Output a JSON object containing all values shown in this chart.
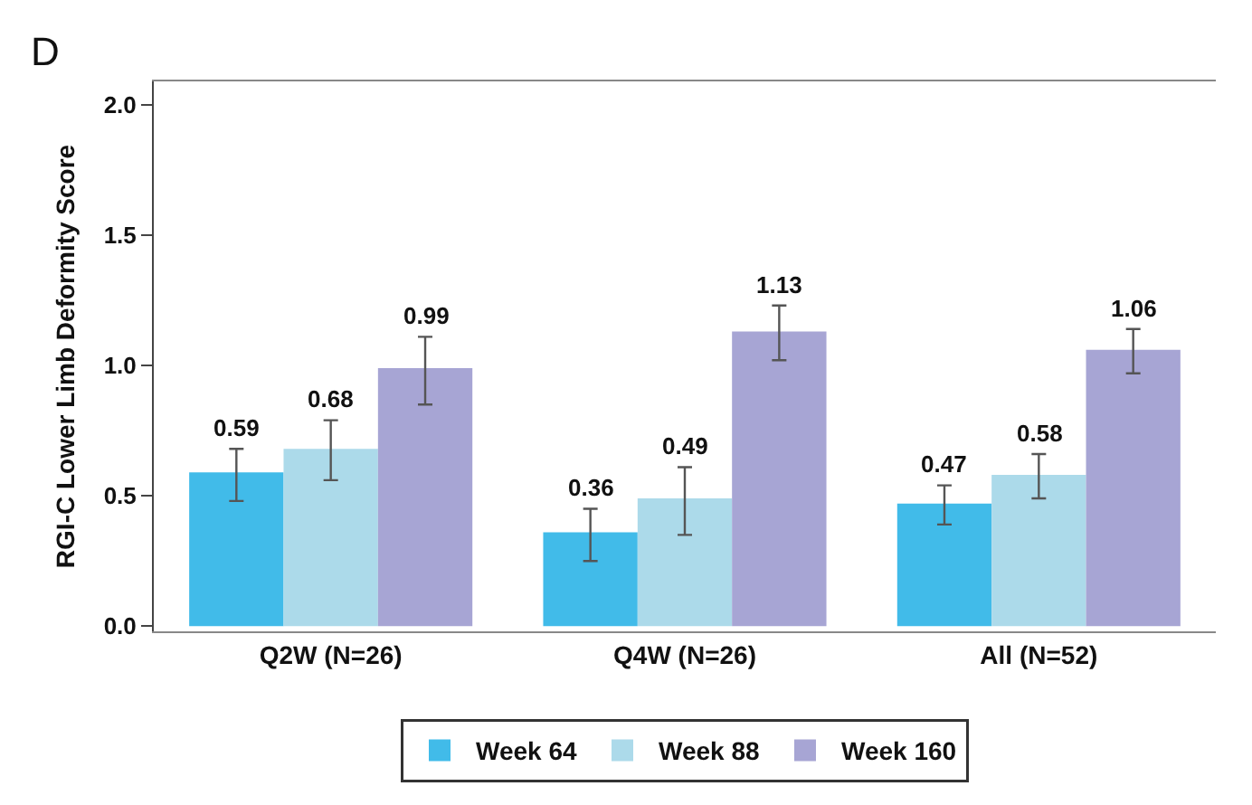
{
  "chart_data": {
    "type": "bar",
    "ylabel": "RGI-C Lower Limb Deformity Score",
    "annotations": [
      "D"
    ],
    "categories": [
      "Q2W (N=26)",
      "Q4W (N=26)",
      "All (N=52)"
    ],
    "series": [
      {
        "name": "Week 64",
        "color": "#41bbe9",
        "values": [
          0.59,
          0.36,
          0.47
        ],
        "errors": [
          [
            0.48,
            0.68
          ],
          [
            0.25,
            0.45
          ],
          [
            0.39,
            0.54
          ]
        ]
      },
      {
        "name": "Week 88",
        "color": "#acdaea",
        "values": [
          0.68,
          0.49,
          0.58
        ],
        "errors": [
          [
            0.56,
            0.79
          ],
          [
            0.35,
            0.61
          ],
          [
            0.49,
            0.66
          ]
        ]
      },
      {
        "name": "Week 160",
        "color": "#a7a5d4",
        "values": [
          0.99,
          1.13,
          1.06
        ],
        "errors": [
          [
            0.85,
            1.11
          ],
          [
            1.02,
            1.23
          ],
          [
            0.97,
            1.14
          ]
        ]
      }
    ],
    "ylim": [
      -0.02,
      2.09
    ],
    "yticks": [
      {
        "value": 0,
        "label": "0.0"
      },
      0.5,
      {
        "value": 1,
        "label": "1.0"
      },
      1.5,
      {
        "value": 2,
        "label": "2.0"
      }
    ],
    "data_labels": true,
    "grid": false,
    "legend": "bottom"
  }
}
